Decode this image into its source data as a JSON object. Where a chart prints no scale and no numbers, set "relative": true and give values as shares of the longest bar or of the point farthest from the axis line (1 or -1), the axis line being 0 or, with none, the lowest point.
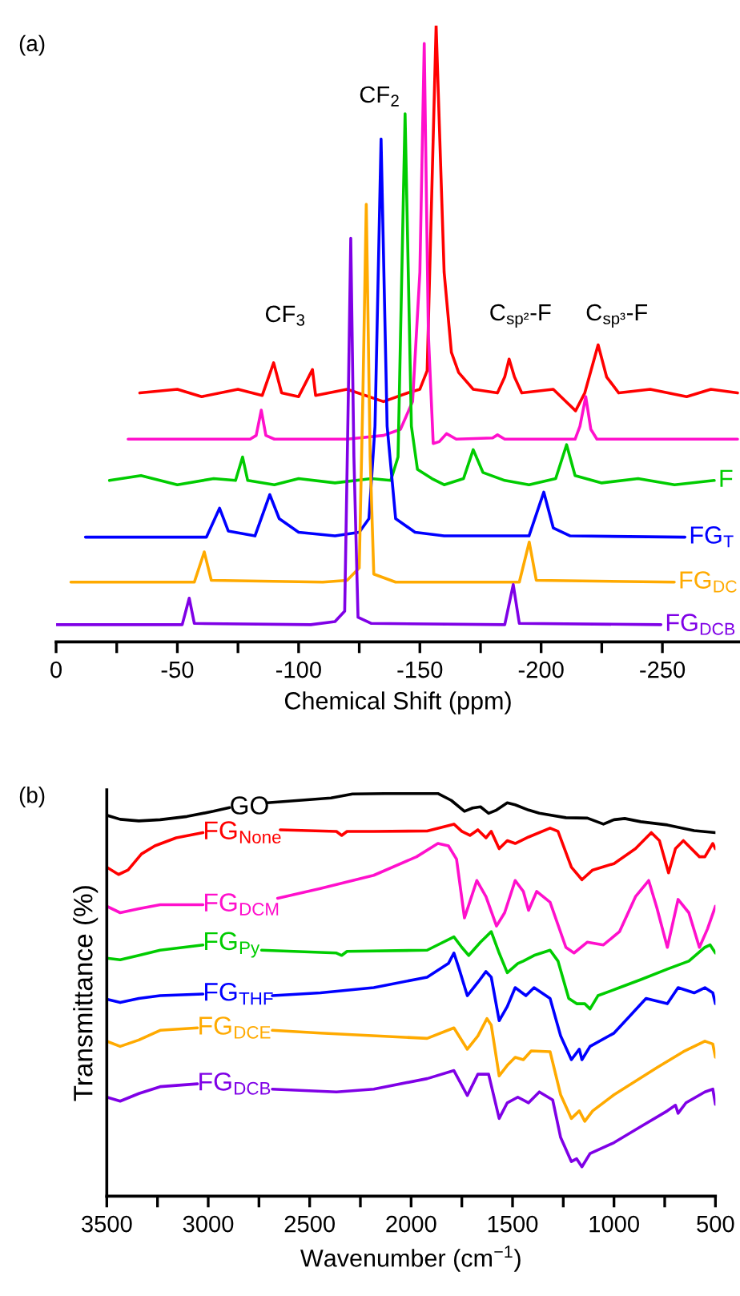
{
  "chart_data": [
    {
      "type": "line",
      "title": "(a)",
      "xlabel": "Chemical Shift (ppm)",
      "relative": true,
      "tick_labels": "x",
      "xlim": [
        0,
        -282
      ],
      "xticks": [
        0,
        {
          "value": -25,
          "label": null
        },
        -50,
        {
          "value": -75,
          "label": null
        },
        -100,
        {
          "value": -125,
          "label": null
        },
        -150,
        {
          "value": -175,
          "label": null
        },
        -200,
        {
          "value": -225,
          "label": null
        },
        -250
      ],
      "annotations": [
        "CF$_{3}$",
        "CF$_{2}$",
        "C$_{sp²}$-F",
        "C$_{sp³}$-F"
      ],
      "series": [
        {
          "color": "#ff0000",
          "x": [
            -34.5,
            -50,
            -60,
            -75,
            -85,
            -89.7,
            -93,
            -100,
            -105.7,
            -107,
            -120,
            -135,
            -145,
            -150,
            -153,
            -156.7,
            -160,
            -163,
            -166,
            -172,
            -182,
            -185,
            -186.8,
            -189,
            -192,
            -205,
            -214.2,
            -218,
            -223.5,
            -227,
            -232,
            -245,
            -260,
            -270,
            -281
          ],
          "values": [
            0.404,
            0.41,
            0.398,
            0.41,
            0.4,
            0.453,
            0.404,
            0.398,
            0.442,
            0.4,
            0.41,
            0.39,
            0.404,
            0.41,
            0.44,
            1.0,
            0.6,
            0.47,
            0.437,
            0.41,
            0.404,
            0.43,
            0.459,
            0.43,
            0.404,
            0.41,
            0.375,
            0.404,
            0.482,
            0.43,
            0.404,
            0.41,
            0.398,
            0.41,
            0.404
          ]
        },
        {
          "color": "#ff10cc",
          "x": [
            -29.7,
            -80,
            -82.5,
            -84.6,
            -86.5,
            -90,
            -120,
            -135,
            -142,
            -147,
            -150,
            -151.8,
            -153.5,
            -155.5,
            -158,
            -161,
            -165,
            -180,
            -182,
            -185,
            -214,
            -216,
            -218.4,
            -220.5,
            -223,
            -281
          ],
          "values": [
            0.329,
            0.329,
            0.335,
            0.376,
            0.335,
            0.329,
            0.329,
            0.335,
            0.345,
            0.39,
            0.6,
            0.971,
            0.5,
            0.322,
            0.325,
            0.338,
            0.329,
            0.331,
            0.336,
            0.329,
            0.329,
            0.35,
            0.398,
            0.345,
            0.329,
            0.329
          ]
        },
        {
          "name": "F",
          "color": "#00cc00",
          "x": [
            -22,
            -35,
            -50,
            -65,
            -74,
            -76.9,
            -79,
            -90,
            -100,
            -115,
            -130,
            -138,
            -141,
            -143.9,
            -146.5,
            -149,
            -155,
            -160,
            -168,
            -172,
            -176,
            -185,
            -195,
            -206,
            -210.5,
            -214,
            -225,
            -240,
            -255,
            -271.4
          ],
          "values": [
            0.262,
            0.27,
            0.255,
            0.265,
            0.262,
            0.3,
            0.262,
            0.255,
            0.265,
            0.258,
            0.265,
            0.262,
            0.3,
            0.857,
            0.35,
            0.28,
            0.265,
            0.255,
            0.265,
            0.312,
            0.275,
            0.262,
            0.255,
            0.265,
            0.32,
            0.27,
            0.258,
            0.265,
            0.255,
            0.262
          ]
        },
        {
          "name": "FG$_{T}$",
          "color": "#0000ff",
          "x": [
            -12.1,
            -62,
            -67.4,
            -71,
            -82,
            -88.1,
            -92,
            -100,
            -115,
            -125,
            -129,
            -131.5,
            -134,
            -136.5,
            -140,
            -148,
            -160,
            -195,
            -201.1,
            -205,
            -212,
            -259.3
          ],
          "values": [
            0.17,
            0.17,
            0.217,
            0.18,
            0.172,
            0.239,
            0.2,
            0.178,
            0.172,
            0.178,
            0.2,
            0.35,
            0.816,
            0.35,
            0.2,
            0.178,
            0.172,
            0.172,
            0.243,
            0.185,
            0.172,
            0.17
          ]
        },
        {
          "name": "FG$_{DC}$",
          "color": "#ffaa00",
          "x": [
            -6.1,
            -57,
            -61.1,
            -64,
            -110,
            -120,
            -125,
            -126.5,
            -127.9,
            -129.5,
            -131,
            -140,
            -191,
            -195.1,
            -198,
            -254.9
          ],
          "values": [
            0.097,
            0.097,
            0.146,
            0.1,
            0.097,
            0.1,
            0.12,
            0.4,
            0.71,
            0.3,
            0.11,
            0.097,
            0.097,
            0.162,
            0.1,
            0.097
          ]
        },
        {
          "name": "FG$_{DCB}$",
          "color": "#7f00e6",
          "x": [
            0,
            -52,
            -54.9,
            -57,
            -105,
            -115,
            -119,
            -120.5,
            -121.5,
            -122.8,
            -124.5,
            -130,
            -185,
            -188.5,
            -191,
            -249.4
          ],
          "values": [
            0.028,
            0.028,
            0.071,
            0.03,
            0.028,
            0.033,
            0.05,
            0.4,
            0.655,
            0.3,
            0.04,
            0.03,
            0.028,
            0.093,
            0.03,
            0.028
          ]
        }
      ]
    },
    {
      "type": "line",
      "title": "(b)",
      "xlabel": "Wavenumber (cm$^{−1}$)",
      "ylabel": "Transmittance (%)",
      "relative": true,
      "tick_labels": "x",
      "xlim": [
        3500,
        500
      ],
      "xticks": [
        3500,
        {
          "value": 3250,
          "label": null
        },
        3000,
        {
          "value": 2750,
          "label": null
        },
        2500,
        {
          "value": 2250,
          "label": null
        },
        2000,
        {
          "value": 1750,
          "label": null
        },
        1500,
        {
          "value": 1250,
          "label": null
        },
        1000,
        {
          "value": 750,
          "label": null
        },
        500
      ],
      "series": [
        {
          "name": "GO",
          "color": "#000000",
          "x": [
            3500,
            3434,
            3342,
            3237,
            3105,
            2974,
            2895,
            2810,
            2710,
            2552,
            2395,
            2289,
            2131,
            1868,
            1802,
            1737,
            1697,
            1658,
            1618,
            1579,
            1526,
            1487,
            1421,
            1368,
            1237,
            1131,
            1052,
            1000,
            947,
            868,
            737,
            605,
            500
          ],
          "values": [
            0.946,
            0.936,
            0.932,
            0.935,
            0.943,
            0.956,
            0.965,
            null,
            0.977,
            0.983,
            0.989,
            0.999,
            1.0,
            1.0,
            0.983,
            0.956,
            0.964,
            0.967,
            0.951,
            0.959,
            0.977,
            0.972,
            0.959,
            0.951,
            0.94,
            0.939,
            0.924,
            0.935,
            0.938,
            0.93,
            0.922,
            0.908,
            0.903
          ]
        },
        {
          "name": "FG$_{None}$",
          "color": "#ff0000",
          "x": [
            3500,
            3442,
            3395,
            3329,
            3263,
            3158,
            3026,
            2842,
            2645,
            2368,
            2342,
            2316,
            2184,
            1921,
            1789,
            1750,
            1710,
            1671,
            1631,
            1605,
            1566,
            1526,
            1487,
            1421,
            1315,
            1276,
            1210,
            1158,
            1105,
            1000,
            894,
            816,
            776,
            731,
            697,
            658,
            579,
            552,
            513,
            500
          ],
          "values": [
            0.817,
            0.799,
            0.81,
            0.85,
            0.87,
            0.89,
            0.903,
            null,
            0.91,
            0.906,
            0.896,
            0.906,
            0.906,
            0.907,
            0.924,
            0.906,
            0.896,
            0.91,
            0.89,
            0.906,
            0.863,
            0.883,
            0.876,
            0.892,
            0.914,
            0.906,
            0.817,
            0.786,
            0.81,
            0.826,
            0.863,
            0.903,
            0.883,
            0.803,
            0.863,
            0.883,
            0.843,
            0.843,
            0.876,
            0.863
          ]
        },
        {
          "name": "FG$_{DCM}$",
          "color": "#ff10cc",
          "x": [
            3500,
            3434,
            3342,
            3237,
            3026,
            2842,
            2658,
            2447,
            2184,
            1973,
            1868,
            1816,
            1776,
            1737,
            1676,
            1631,
            1579,
            1539,
            1487,
            1447,
            1421,
            1381,
            1315,
            1237,
            1197,
            1131,
            1052,
            973,
            894,
            829,
            789,
            737,
            684,
            631,
            579,
            539,
            500
          ],
          "values": [
            0.72,
            0.704,
            0.714,
            0.724,
            0.724,
            null,
            0.74,
            0.764,
            0.797,
            0.843,
            0.876,
            0.87,
            0.837,
            0.691,
            0.784,
            0.744,
            0.671,
            0.704,
            0.784,
            0.757,
            0.71,
            0.757,
            0.73,
            0.618,
            0.604,
            0.631,
            0.624,
            0.657,
            0.744,
            0.784,
            0.717,
            0.618,
            0.737,
            0.704,
            0.618,
            0.664,
            0.72
          ]
        },
        {
          "name": "FG$_{Py}$",
          "color": "#00cc00",
          "x": [
            3500,
            3434,
            3342,
            3237,
            3026,
            2842,
            2737,
            2368,
            2342,
            2316,
            1921,
            1789,
            1750,
            1716,
            1658,
            1605,
            1566,
            1526,
            1474,
            1447,
            1394,
            1315,
            1276,
            1223,
            1184,
            1144,
            1118,
            1079,
            973,
            868,
            737,
            631,
            552,
            526,
            500
          ],
          "values": [
            0.591,
            0.587,
            0.598,
            0.611,
            0.624,
            null,
            0.611,
            0.604,
            0.598,
            0.608,
            0.611,
            0.644,
            0.618,
            0.598,
            0.631,
            0.657,
            0.604,
            0.555,
            0.578,
            0.584,
            0.598,
            0.611,
            0.584,
            0.491,
            0.478,
            0.478,
            0.465,
            0.498,
            0.518,
            0.538,
            0.564,
            0.584,
            0.618,
            0.624,
            0.604
          ]
        },
        {
          "name": "FG$_{THF}$",
          "color": "#0000ff",
          "x": [
            3500,
            3434,
            3342,
            3237,
            3026,
            2842,
            2684,
            2447,
            2184,
            1921,
            1816,
            1789,
            1763,
            1723,
            1671,
            1631,
            1605,
            1566,
            1526,
            1487,
            1434,
            1394,
            1315,
            1263,
            1210,
            1171,
            1158,
            1118,
            1000,
            842,
            737,
            684,
            605,
            552,
            513,
            500
          ],
          "values": [
            0.489,
            0.481,
            0.491,
            0.498,
            0.502,
            null,
            0.498,
            0.505,
            0.518,
            0.544,
            0.578,
            0.604,
            0.564,
            0.498,
            0.531,
            0.558,
            0.544,
            0.436,
            0.471,
            0.518,
            0.498,
            0.518,
            0.491,
            0.398,
            0.339,
            0.365,
            0.339,
            0.372,
            0.405,
            0.491,
            0.478,
            0.518,
            0.505,
            0.518,
            0.505,
            0.478
          ]
        },
        {
          "name": "FG$_{DCE}$",
          "color": "#ffaa00",
          "x": [
            3500,
            3434,
            3342,
            3237,
            3053,
            2842,
            2684,
            2447,
            1921,
            1789,
            1723,
            1671,
            1626,
            1605,
            1566,
            1526,
            1487,
            1447,
            1408,
            1315,
            1263,
            1210,
            1171,
            1144,
            1105,
            1000,
            789,
            658,
            552,
            513,
            500
          ],
          "values": [
            0.385,
            0.372,
            0.388,
            0.412,
            0.418,
            null,
            0.412,
            0.405,
            0.392,
            0.418,
            0.365,
            0.398,
            0.441,
            0.425,
            0.299,
            0.325,
            0.345,
            0.339,
            0.361,
            0.359,
            0.252,
            0.193,
            0.212,
            0.186,
            0.212,
            0.252,
            0.319,
            0.359,
            0.385,
            0.378,
            0.345
          ]
        },
        {
          "name": "FG$_{DCB}$",
          "color": "#7f00e6",
          "x": [
            3500,
            3434,
            3342,
            3237,
            3053,
            2842,
            2684,
            2368,
            2184,
            1921,
            1789,
            1723,
            1671,
            1618,
            1566,
            1526,
            1474,
            1421,
            1368,
            1302,
            1263,
            1210,
            1184,
            1158,
            1118,
            1000,
            868,
            737,
            697,
            684,
            645,
            552,
            513,
            500
          ],
          "values": [
            0.246,
            0.236,
            0.255,
            0.272,
            0.279,
            null,
            0.266,
            0.259,
            0.266,
            0.292,
            0.312,
            0.25,
            0.303,
            0.303,
            0.193,
            0.232,
            0.246,
            0.232,
            0.259,
            0.239,
            0.146,
            0.086,
            0.093,
            0.073,
            0.106,
            0.133,
            0.173,
            0.212,
            0.226,
            0.206,
            0.232,
            0.259,
            0.266,
            0.228
          ]
        }
      ]
    }
  ]
}
